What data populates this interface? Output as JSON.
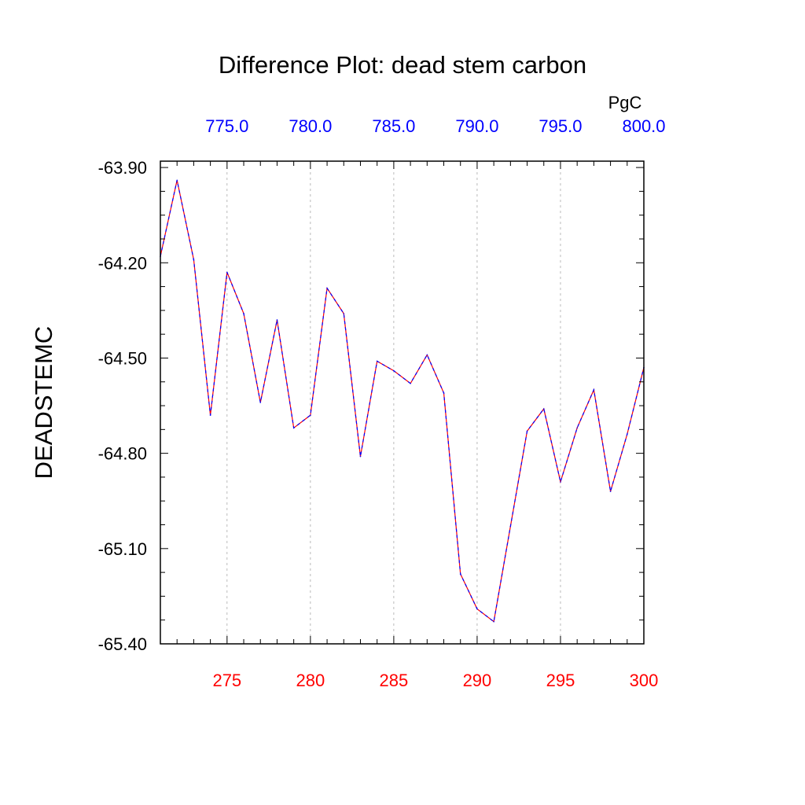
{
  "chart_data": {
    "type": "line",
    "title": "Difference Plot: dead stem carbon",
    "ylabel": "DEADSTEMC",
    "top_axis_units": "PgC",
    "xlim": [
      271,
      300
    ],
    "ylim": [
      -65.4,
      -63.88
    ],
    "grid": "vertical dashed at major x ticks",
    "yticks": [
      "-63.90",
      "-64.20",
      "-64.50",
      "-64.80",
      "-65.10",
      "-65.40"
    ],
    "ytick_values": [
      -63.9,
      -64.2,
      -64.5,
      -64.8,
      -65.1,
      -65.4
    ],
    "xticks_bottom": [
      "275",
      "280",
      "285",
      "290",
      "295",
      "300"
    ],
    "xticks_bottom_values": [
      275,
      280,
      285,
      290,
      295,
      300
    ],
    "xticks_top": [
      "775.0",
      "780.0",
      "785.0",
      "790.0",
      "795.0",
      "800.0"
    ],
    "xticks_top_values": [
      275,
      280,
      285,
      290,
      295,
      300
    ],
    "colors": {
      "bottom_ticks": "#ff0000",
      "top_ticks": "#0000ff",
      "line_a": "#ff0000",
      "line_b": "#0000ff",
      "grid": "#aaaaaa"
    },
    "series": [
      {
        "x": [
          271,
          272,
          273,
          274,
          275,
          276,
          277,
          278,
          279,
          280,
          281,
          282,
          283,
          284,
          285,
          286,
          287,
          288,
          289,
          290,
          291,
          292,
          293,
          294,
          295,
          296,
          297,
          298,
          299,
          300
        ],
        "y": [
          -64.18,
          -63.94,
          -64.19,
          -64.68,
          -64.23,
          -64.36,
          -64.64,
          -64.38,
          -64.72,
          -64.68,
          -64.28,
          -64.36,
          -64.81,
          -64.51,
          -64.54,
          -64.58,
          -64.49,
          -64.61,
          -65.18,
          -65.29,
          -65.33,
          -65.03,
          -64.73,
          -64.66,
          -64.89,
          -64.72,
          -64.6,
          -64.92,
          -64.74,
          -64.53
        ]
      }
    ]
  }
}
